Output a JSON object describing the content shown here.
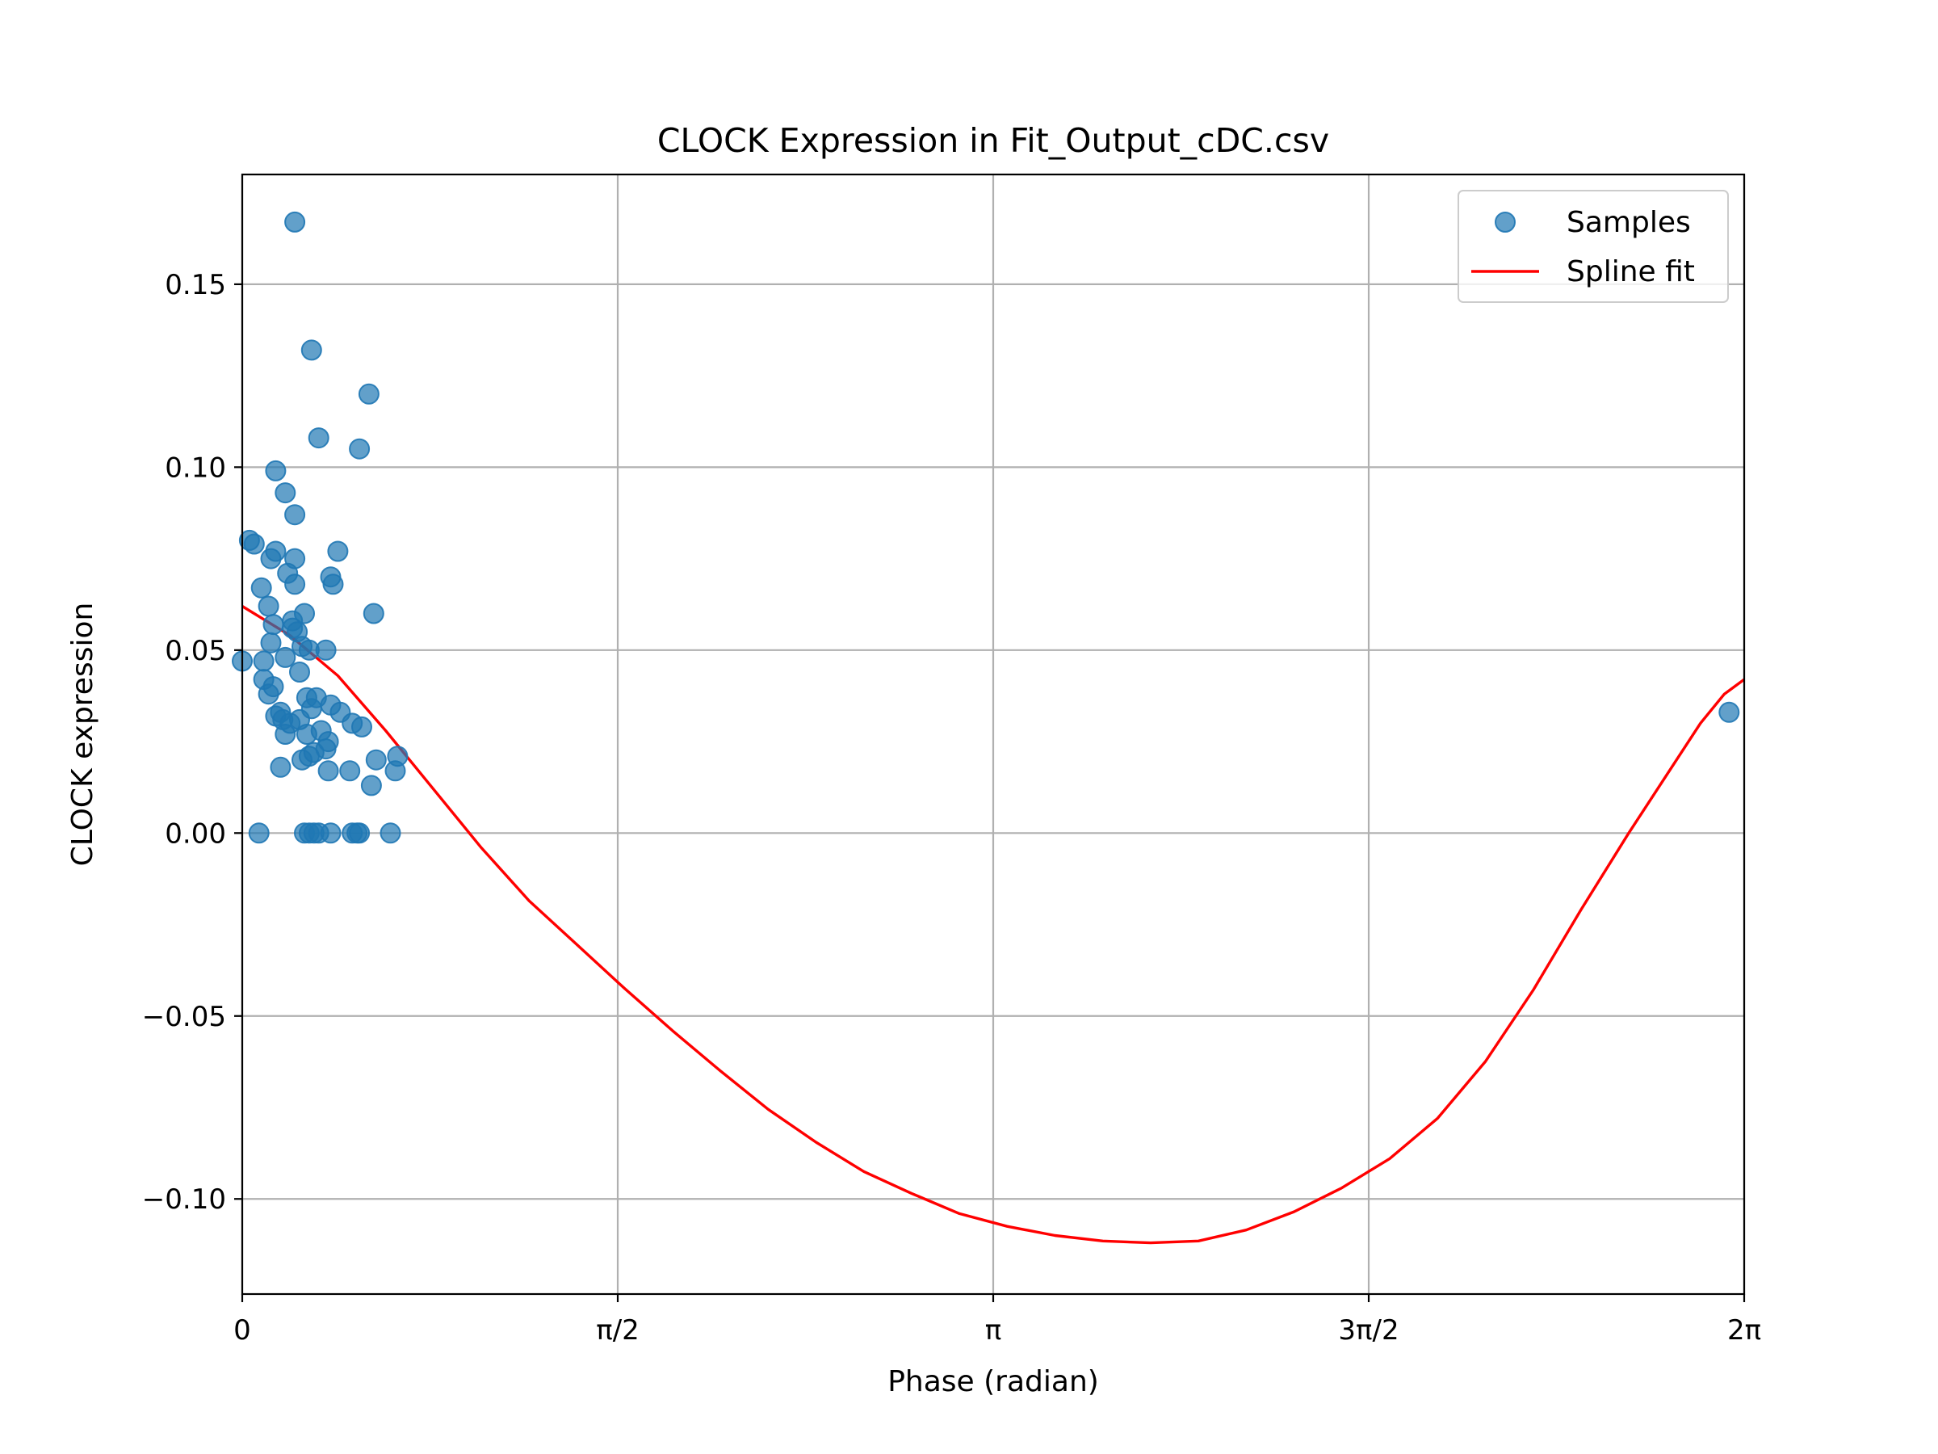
{
  "chart_data": {
    "type": "scatter",
    "title": "CLOCK Expression in Fit_Output_cDC.csv",
    "xlabel": "Phase (radian)",
    "ylabel": "CLOCK expression",
    "xlim": [
      0,
      6.2832
    ],
    "ylim": [
      -0.126,
      0.18
    ],
    "grid": true,
    "legend_position": "upper right",
    "x_ticks": [
      {
        "value": 0,
        "label": "0"
      },
      {
        "value": 1.5708,
        "label": "π/2"
      },
      {
        "value": 3.1416,
        "label": "π"
      },
      {
        "value": 4.7124,
        "label": "3π/2"
      },
      {
        "value": 6.2832,
        "label": "2π"
      }
    ],
    "y_ticks": [
      {
        "value": 0.15,
        "label": "0.15"
      },
      {
        "value": 0.1,
        "label": "0.10"
      },
      {
        "value": 0.05,
        "label": "0.05"
      },
      {
        "value": 0.0,
        "label": "0.00"
      },
      {
        "value": -0.05,
        "label": "−0.05"
      },
      {
        "value": -0.1,
        "label": "−0.10"
      }
    ],
    "series": [
      {
        "name": "Samples",
        "kind": "scatter",
        "color": "#1f77b4",
        "points": [
          [
            0.0,
            0.047
          ],
          [
            0.03,
            0.08
          ],
          [
            0.05,
            0.079
          ],
          [
            0.07,
            0.0
          ],
          [
            0.08,
            0.067
          ],
          [
            0.09,
            0.042
          ],
          [
            0.09,
            0.047
          ],
          [
            0.11,
            0.038
          ],
          [
            0.11,
            0.062
          ],
          [
            0.12,
            0.052
          ],
          [
            0.12,
            0.075
          ],
          [
            0.13,
            0.04
          ],
          [
            0.13,
            0.057
          ],
          [
            0.14,
            0.032
          ],
          [
            0.14,
            0.099
          ],
          [
            0.14,
            0.077
          ],
          [
            0.16,
            0.033
          ],
          [
            0.16,
            0.018
          ],
          [
            0.17,
            0.031
          ],
          [
            0.18,
            0.027
          ],
          [
            0.18,
            0.093
          ],
          [
            0.18,
            0.048
          ],
          [
            0.19,
            0.071
          ],
          [
            0.2,
            0.03
          ],
          [
            0.21,
            0.058
          ],
          [
            0.21,
            0.056
          ],
          [
            0.22,
            0.075
          ],
          [
            0.22,
            0.087
          ],
          [
            0.22,
            0.068
          ],
          [
            0.22,
            0.167
          ],
          [
            0.23,
            0.055
          ],
          [
            0.24,
            0.044
          ],
          [
            0.24,
            0.031
          ],
          [
            0.25,
            0.02
          ],
          [
            0.25,
            0.051
          ],
          [
            0.26,
            0.06
          ],
          [
            0.26,
            0.0
          ],
          [
            0.27,
            0.037
          ],
          [
            0.27,
            0.027
          ],
          [
            0.28,
            0.0
          ],
          [
            0.28,
            0.021
          ],
          [
            0.28,
            0.05
          ],
          [
            0.29,
            0.034
          ],
          [
            0.29,
            0.132
          ],
          [
            0.3,
            0.022
          ],
          [
            0.3,
            0.0
          ],
          [
            0.31,
            0.037
          ],
          [
            0.32,
            0.108
          ],
          [
            0.32,
            0.0
          ],
          [
            0.33,
            0.028
          ],
          [
            0.35,
            0.023
          ],
          [
            0.35,
            0.05
          ],
          [
            0.36,
            0.017
          ],
          [
            0.36,
            0.025
          ],
          [
            0.37,
            0.035
          ],
          [
            0.37,
            0.07
          ],
          [
            0.37,
            0.0
          ],
          [
            0.38,
            0.068
          ],
          [
            0.4,
            0.077
          ],
          [
            0.41,
            0.033
          ],
          [
            0.45,
            0.017
          ],
          [
            0.46,
            0.03
          ],
          [
            0.46,
            0.0
          ],
          [
            0.48,
            0.0
          ],
          [
            0.49,
            0.105
          ],
          [
            0.49,
            0.0
          ],
          [
            0.5,
            0.029
          ],
          [
            0.53,
            0.12
          ],
          [
            0.54,
            0.013
          ],
          [
            0.55,
            0.06
          ],
          [
            0.56,
            0.02
          ],
          [
            0.62,
            0.0
          ],
          [
            0.64,
            0.017
          ],
          [
            0.65,
            0.021
          ],
          [
            6.22,
            0.033
          ]
        ]
      },
      {
        "name": "Spline fit",
        "kind": "line",
        "color": "#ff0000",
        "points": [
          [
            0.0,
            0.062
          ],
          [
            0.2,
            0.054
          ],
          [
            0.4,
            0.043
          ],
          [
            0.6,
            0.028
          ],
          [
            0.8,
            0.012
          ],
          [
            1.0,
            -0.004
          ],
          [
            1.2,
            -0.0185
          ],
          [
            1.4,
            -0.0305
          ],
          [
            1.6,
            -0.0425
          ],
          [
            1.8,
            -0.054
          ],
          [
            2.0,
            -0.065
          ],
          [
            2.2,
            -0.0755
          ],
          [
            2.4,
            -0.0845
          ],
          [
            2.6,
            -0.0925
          ],
          [
            2.8,
            -0.0985
          ],
          [
            3.0,
            -0.104
          ],
          [
            3.2,
            -0.1075
          ],
          [
            3.4,
            -0.11
          ],
          [
            3.6,
            -0.1115
          ],
          [
            3.8,
            -0.112
          ],
          [
            4.0,
            -0.1115
          ],
          [
            4.2,
            -0.1085
          ],
          [
            4.4,
            -0.1035
          ],
          [
            4.6,
            -0.097
          ],
          [
            4.8,
            -0.089
          ],
          [
            5.0,
            -0.078
          ],
          [
            5.2,
            -0.0625
          ],
          [
            5.4,
            -0.043
          ],
          [
            5.6,
            -0.021
          ],
          [
            5.8,
            0.0
          ],
          [
            6.0,
            0.02
          ],
          [
            6.1,
            0.03
          ],
          [
            6.2,
            0.038
          ],
          [
            6.2832,
            0.042
          ]
        ]
      }
    ]
  }
}
